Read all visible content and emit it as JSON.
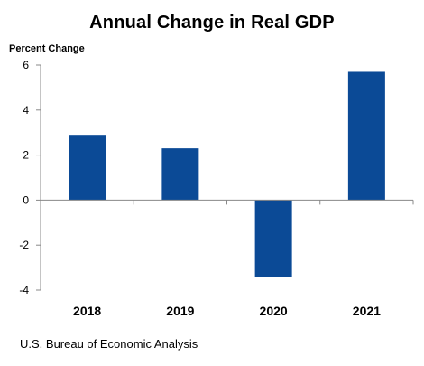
{
  "chart_data": {
    "type": "bar",
    "title": "Annual Change in Real GDP",
    "ylabel": "Percent Change",
    "xlabel": "",
    "categories": [
      "2018",
      "2019",
      "2020",
      "2021"
    ],
    "values": [
      2.9,
      2.3,
      -3.4,
      5.7
    ],
    "ylim": [
      -4,
      6
    ],
    "yticks": [
      6,
      4,
      2,
      0,
      -2,
      -4
    ],
    "grid": false,
    "bar_color": "#0b4a96",
    "axis_color": "#888888"
  },
  "source": "U.S. Bureau of Economic Analysis"
}
